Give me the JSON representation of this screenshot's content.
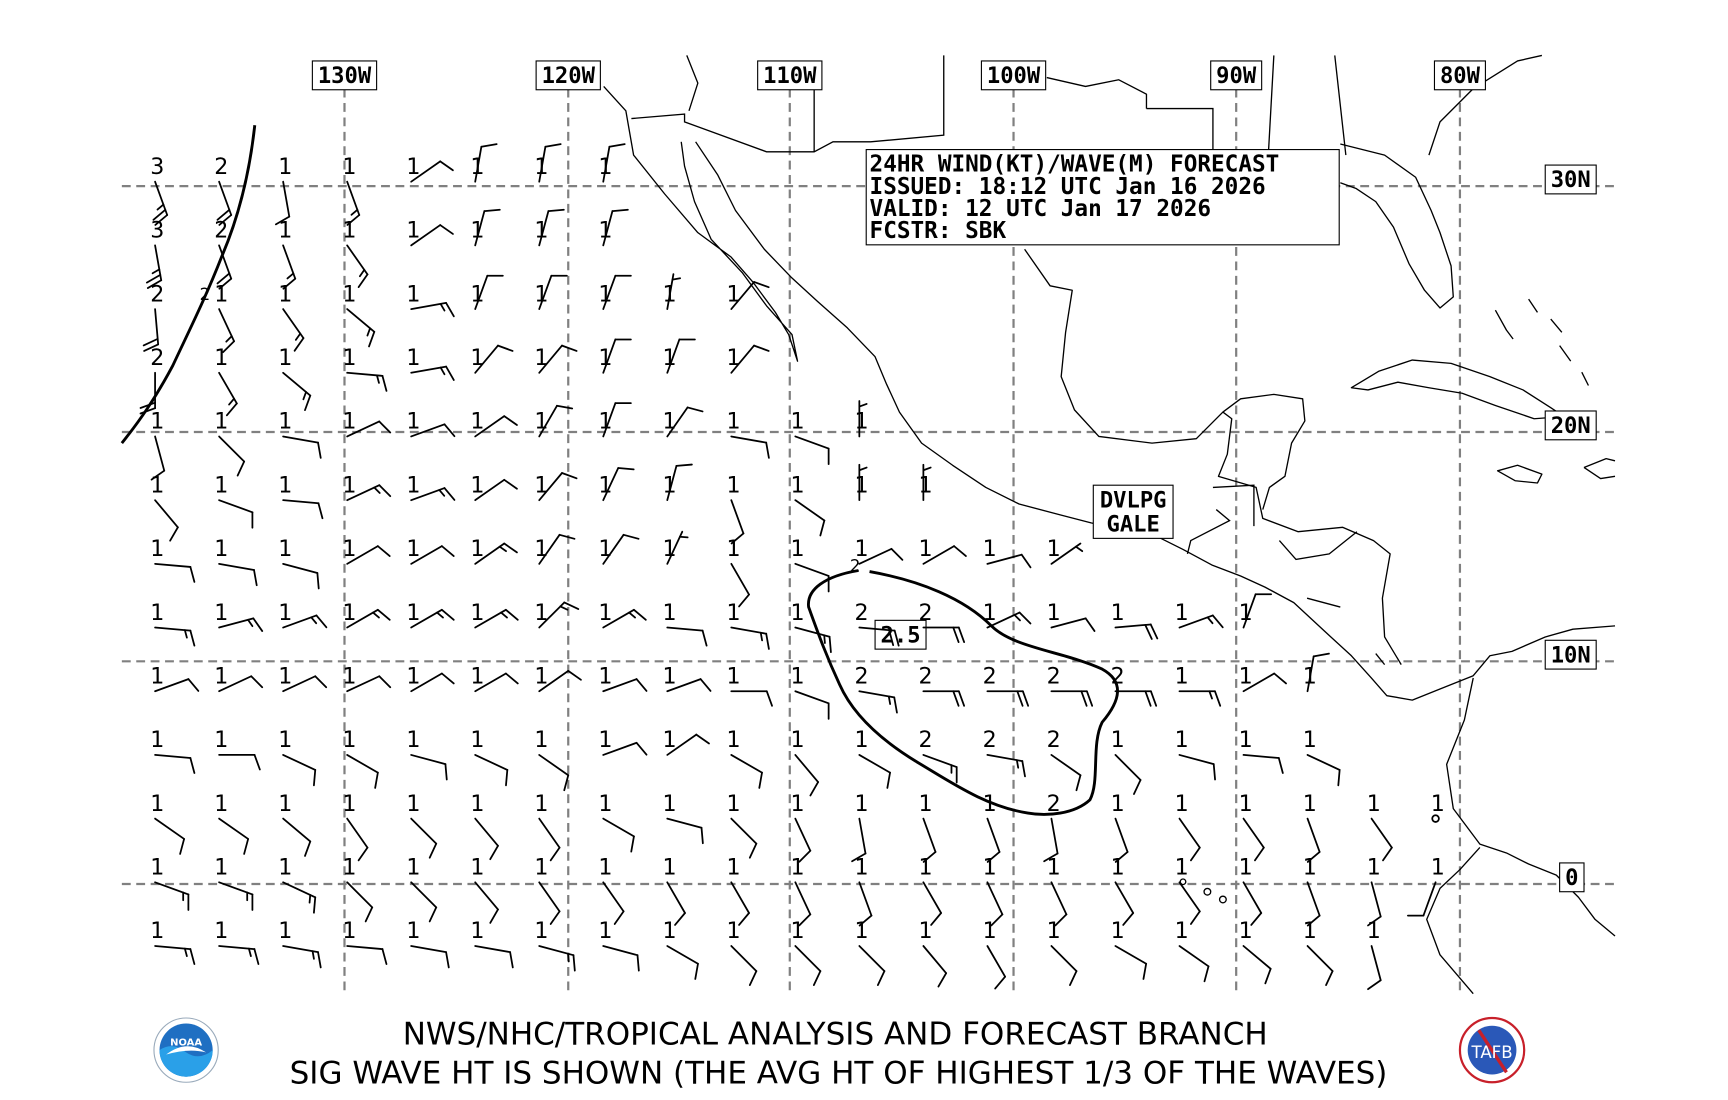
{
  "header": {
    "line1": "24HR WIND(KT)/WAVE(M) FORECAST",
    "line2": "ISSUED: 18:12 UTC Jan 16 2026",
    "line3": "VALID: 12 UTC Jan 17 2026",
    "line4": "FCSTR: SBK"
  },
  "longitude_labels": [
    "130W",
    "120W",
    "110W",
    "100W",
    "90W",
    "80W"
  ],
  "latitude_labels": [
    "30N",
    "20N",
    "10N",
    "0"
  ],
  "warning_label": {
    "line1": "DVLPG",
    "line2": "GALE"
  },
  "contour_labels": {
    "max": "2.5",
    "c1": "2",
    "c2": "2"
  },
  "footer": {
    "line1": "NWS/NHC/TROPICAL ANALYSIS AND FORECAST BRANCH",
    "line2": "SIG WAVE HT IS SHOWN (THE AVG HT OF HIGHEST 1/3 OF THE WAVES)",
    "logo_left": "NOAA",
    "logo_right": "TAFB"
  },
  "colors": {
    "grid": "#808080",
    "noaa_blue": "#1f6fc2",
    "tafb_red": "#c8202a"
  },
  "wave_heights_m": [
    [
      3,
      2,
      1,
      1,
      1,
      1,
      1,
      1
    ],
    [
      3,
      2,
      1,
      1,
      1,
      1,
      1,
      1
    ],
    [
      2,
      1,
      1,
      1,
      1,
      1,
      1,
      1,
      1,
      1
    ],
    [
      2,
      1,
      1,
      1,
      1,
      1,
      1,
      1,
      1,
      1
    ],
    [
      1,
      1,
      1,
      1,
      1,
      1,
      1,
      1,
      1,
      1,
      1,
      1
    ],
    [
      1,
      1,
      1,
      1,
      1,
      1,
      1,
      1,
      1,
      1,
      1,
      1,
      1
    ],
    [
      1,
      1,
      1,
      1,
      1,
      1,
      1,
      1,
      1,
      1,
      1,
      1,
      1,
      1,
      1
    ],
    [
      1,
      1,
      1,
      1,
      1,
      1,
      1,
      1,
      1,
      1,
      1,
      2,
      2,
      1,
      1,
      1,
      1,
      1
    ],
    [
      1,
      1,
      1,
      1,
      1,
      1,
      1,
      1,
      1,
      1,
      1,
      2,
      2,
      2,
      2,
      2,
      1,
      1,
      1
    ],
    [
      1,
      1,
      1,
      1,
      1,
      1,
      1,
      1,
      1,
      1,
      1,
      1,
      2,
      2,
      2,
      1,
      1,
      1,
      1
    ],
    [
      1,
      1,
      1,
      1,
      1,
      1,
      1,
      1,
      1,
      1,
      1,
      1,
      1,
      1,
      2,
      1,
      1,
      1,
      1,
      1,
      1
    ],
    [
      1,
      1,
      1,
      1,
      1,
      1,
      1,
      1,
      1,
      1,
      1,
      1,
      1,
      1,
      1,
      1,
      1,
      1,
      1,
      1,
      1
    ],
    [
      1,
      1,
      1,
      1,
      1,
      1,
      1,
      1,
      1,
      1,
      1,
      1,
      1,
      1,
      1,
      1,
      1,
      1,
      1,
      1
    ]
  ],
  "winds_dir_kt": [
    [
      [
        160,
        25
      ],
      [
        160,
        20
      ],
      [
        170,
        10
      ],
      [
        160,
        15
      ],
      [
        55,
        10
      ],
      [
        10,
        10
      ],
      [
        10,
        10
      ],
      [
        10,
        10
      ]
    ],
    [
      [
        170,
        25
      ],
      [
        160,
        20
      ],
      [
        160,
        15
      ],
      [
        145,
        15
      ],
      [
        55,
        10
      ],
      [
        15,
        10
      ],
      [
        15,
        10
      ],
      [
        15,
        10
      ]
    ],
    [
      [
        175,
        20
      ],
      [
        155,
        15
      ],
      [
        145,
        15
      ],
      [
        130,
        15
      ],
      [
        80,
        15
      ],
      [
        20,
        10
      ],
      [
        20,
        10
      ],
      [
        20,
        10
      ],
      [
        10,
        5
      ],
      [
        40,
        10
      ]
    ],
    [
      [
        180,
        20
      ],
      [
        150,
        15
      ],
      [
        130,
        15
      ],
      [
        95,
        15
      ],
      [
        80,
        15
      ],
      [
        40,
        10
      ],
      [
        40,
        10
      ],
      [
        20,
        10
      ],
      [
        20,
        10
      ],
      [
        40,
        10
      ]
    ],
    [
      [
        165,
        10
      ],
      [
        135,
        10
      ],
      [
        100,
        10
      ],
      [
        65,
        10
      ],
      [
        70,
        10
      ],
      [
        55,
        10
      ],
      [
        30,
        10
      ],
      [
        20,
        10
      ],
      [
        35,
        10
      ],
      [
        100,
        10
      ],
      [
        110,
        10
      ],
      [
        0,
        5
      ]
    ],
    [
      [
        140,
        10
      ],
      [
        110,
        10
      ],
      [
        95,
        10
      ],
      [
        65,
        15
      ],
      [
        70,
        15
      ],
      [
        55,
        10
      ],
      [
        40,
        10
      ],
      [
        25,
        10
      ],
      [
        15,
        10
      ],
      [
        160,
        10
      ],
      [
        125,
        10
      ],
      [
        0,
        5
      ],
      [
        0,
        5
      ]
    ],
    [
      [
        95,
        10
      ],
      [
        100,
        10
      ],
      [
        105,
        10
      ],
      [
        60,
        10
      ],
      [
        60,
        10
      ],
      [
        55,
        15
      ],
      [
        35,
        10
      ],
      [
        35,
        10
      ],
      [
        25,
        5
      ],
      [
        150,
        10
      ],
      [
        110,
        10
      ],
      [
        65,
        10
      ],
      [
        60,
        10
      ],
      [
        75,
        10
      ],
      [
        55,
        5
      ]
    ],
    [
      [
        95,
        15
      ],
      [
        75,
        15
      ],
      [
        70,
        15
      ],
      [
        60,
        15
      ],
      [
        60,
        15
      ],
      [
        60,
        15
      ],
      [
        45,
        15
      ],
      [
        60,
        15
      ],
      [
        95,
        10
      ],
      [
        100,
        15
      ],
      [
        105,
        15
      ],
      [
        95,
        20
      ],
      [
        90,
        20
      ],
      [
        65,
        15
      ],
      [
        75,
        10
      ],
      [
        85,
        20
      ],
      [
        70,
        15
      ],
      [
        20,
        10
      ]
    ],
    [
      [
        70,
        10
      ],
      [
        65,
        10
      ],
      [
        65,
        10
      ],
      [
        65,
        10
      ],
      [
        60,
        10
      ],
      [
        60,
        10
      ],
      [
        55,
        10
      ],
      [
        70,
        10
      ],
      [
        70,
        10
      ],
      [
        90,
        10
      ],
      [
        110,
        10
      ],
      [
        100,
        15
      ],
      [
        90,
        20
      ],
      [
        90,
        20
      ],
      [
        90,
        20
      ],
      [
        90,
        20
      ],
      [
        90,
        15
      ],
      [
        60,
        10
      ],
      [
        10,
        10
      ]
    ],
    [
      [
        95,
        10
      ],
      [
        90,
        10
      ],
      [
        115,
        10
      ],
      [
        120,
        10
      ],
      [
        105,
        10
      ],
      [
        115,
        10
      ],
      [
        125,
        10
      ],
      [
        70,
        10
      ],
      [
        55,
        10
      ],
      [
        120,
        10
      ],
      [
        140,
        10
      ],
      [
        120,
        10
      ],
      [
        110,
        15
      ],
      [
        100,
        15
      ],
      [
        125,
        10
      ],
      [
        135,
        10
      ],
      [
        105,
        10
      ],
      [
        95,
        10
      ],
      [
        115,
        10
      ]
    ],
    [
      [
        125,
        10
      ],
      [
        125,
        10
      ],
      [
        130,
        10
      ],
      [
        145,
        10
      ],
      [
        135,
        10
      ],
      [
        140,
        10
      ],
      [
        145,
        10
      ],
      [
        120,
        10
      ],
      [
        105,
        10
      ],
      [
        135,
        10
      ],
      [
        155,
        10
      ],
      [
        170,
        10
      ],
      [
        160,
        10
      ],
      [
        160,
        10
      ],
      [
        170,
        10
      ],
      [
        160,
        10
      ],
      [
        145,
        10
      ],
      [
        145,
        10
      ],
      [
        160,
        10
      ],
      [
        145,
        10
      ],
      [
        0,
        0
      ]
    ],
    [
      [
        110,
        15
      ],
      [
        110,
        15
      ],
      [
        115,
        15
      ],
      [
        135,
        10
      ],
      [
        135,
        10
      ],
      [
        140,
        10
      ],
      [
        145,
        10
      ],
      [
        145,
        10
      ],
      [
        150,
        10
      ],
      [
        150,
        10
      ],
      [
        155,
        10
      ],
      [
        160,
        10
      ],
      [
        150,
        10
      ],
      [
        155,
        10
      ],
      [
        155,
        10
      ],
      [
        150,
        10
      ],
      [
        145,
        10
      ],
      [
        150,
        10
      ],
      [
        160,
        10
      ],
      [
        165,
        10
      ],
      [
        200,
        10
      ]
    ],
    [
      [
        95,
        15
      ],
      [
        95,
        15
      ],
      [
        100,
        15
      ],
      [
        95,
        10
      ],
      [
        100,
        10
      ],
      [
        100,
        10
      ],
      [
        105,
        15
      ],
      [
        105,
        10
      ],
      [
        120,
        10
      ],
      [
        135,
        10
      ],
      [
        135,
        10
      ],
      [
        135,
        10
      ],
      [
        140,
        10
      ],
      [
        150,
        10
      ],
      [
        135,
        10
      ],
      [
        120,
        10
      ],
      [
        125,
        10
      ],
      [
        130,
        10
      ],
      [
        135,
        10
      ],
      [
        165,
        10
      ]
    ]
  ]
}
